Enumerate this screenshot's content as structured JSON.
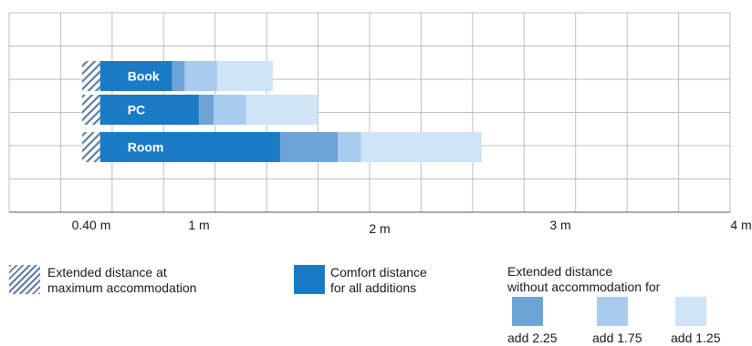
{
  "chart_data": {
    "type": "bar",
    "orientation": "horizontal",
    "stacked": true,
    "categories": [
      "Book",
      "PC",
      "Room"
    ],
    "axis_start": 0.4,
    "comfort_start": 0.5,
    "series": [
      {
        "name": "Extended distance at maximum accommodation",
        "values": [
          0.1,
          0.1,
          0.1
        ],
        "color": "#5d7fa3"
      },
      {
        "name": "Comfort distance for all additions",
        "values": [
          0.4,
          0.55,
          1.0
        ],
        "color": "#1a7bc4"
      },
      {
        "name": "add 2.25",
        "values": [
          0.07,
          0.08,
          0.32
        ],
        "color": "#6ea3d8"
      },
      {
        "name": "add 1.75",
        "values": [
          0.18,
          0.18,
          0.13
        ],
        "color": "#a9cbee"
      },
      {
        "name": "add 1.25",
        "values": [
          0.31,
          0.4,
          0.67
        ],
        "color": "#cfe4f7"
      }
    ],
    "xlim": [
      0,
      4
    ],
    "x_ticks": [
      {
        "value": 0.4,
        "label": "0.40 m"
      },
      {
        "value": 1,
        "label": "1 m"
      },
      {
        "value": 2,
        "label": "2 m"
      },
      {
        "value": 3,
        "label": "3 m"
      },
      {
        "value": 4,
        "label": "4 m"
      }
    ],
    "grid": true,
    "legend_position": "bottom"
  },
  "legend": {
    "hatch_label_line1": "Extended distance at",
    "hatch_label_line2": "maximum accommodation",
    "comfort_label_line1": "Comfort distance",
    "comfort_label_line2": "for all additions",
    "extended_title_line1": "Extended distance",
    "extended_title_line2": "without accommodation for",
    "add_labels": [
      "add 2.25",
      "add 1.75",
      "add 1.25"
    ]
  },
  "colors": {
    "grid": "#bdbdbd",
    "axis": "#555555",
    "hatch": "#5d7fa3",
    "comfort": "#1a7bc4",
    "add_2_25": "#6ea3d8",
    "add_1_75": "#a9cbee",
    "add_1_25": "#cfe4f7",
    "bar_label": "#ffffff"
  }
}
